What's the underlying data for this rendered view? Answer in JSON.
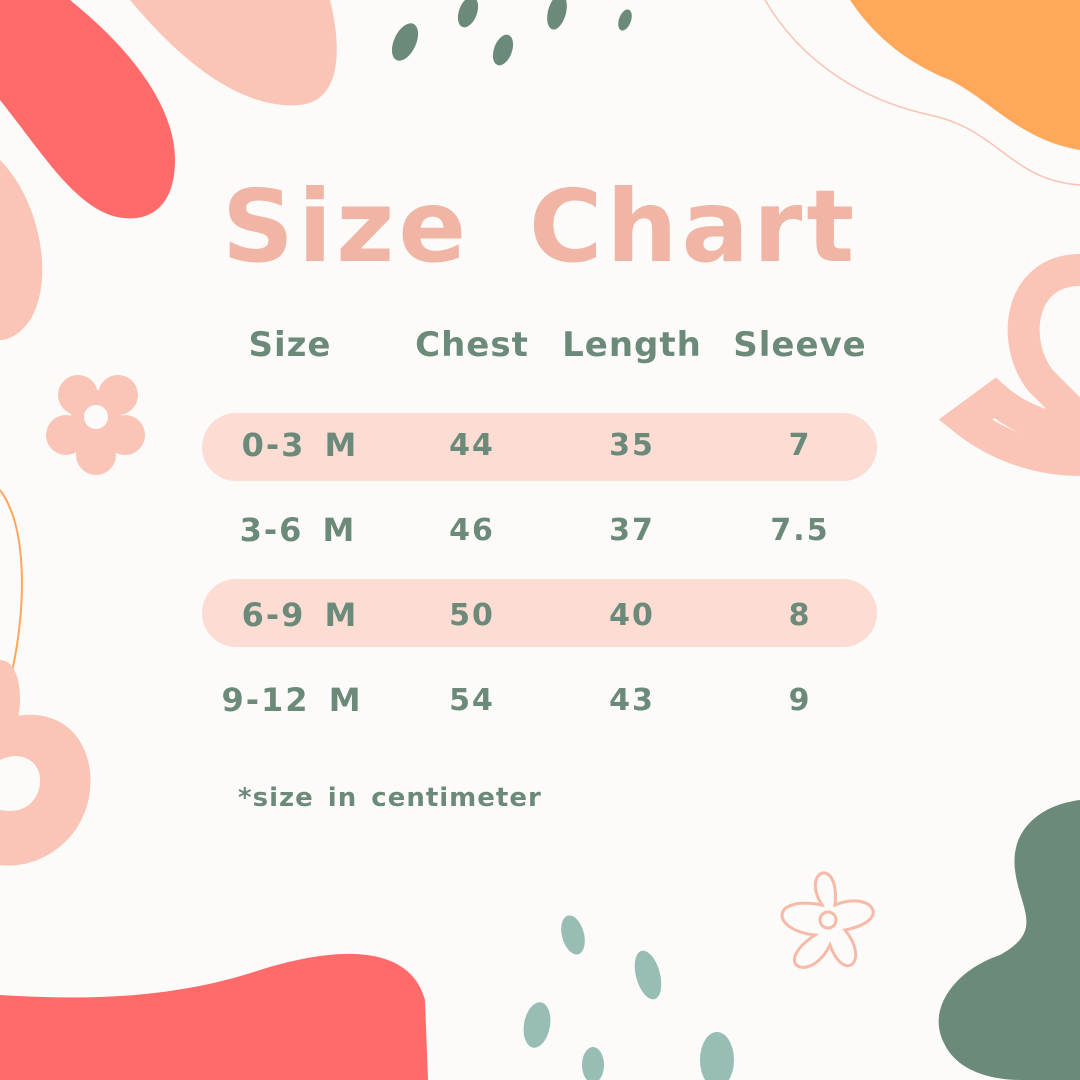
{
  "title": "Size Chart",
  "headers": [
    "Size",
    "Chest",
    "Length",
    "Sleeve"
  ],
  "rows": [
    {
      "size": "0-3 M",
      "chest": "44",
      "length": "35",
      "sleeve": "7",
      "highlight": true
    },
    {
      "size": "3-6 M",
      "chest": "46",
      "length": "37",
      "sleeve": "7.5",
      "highlight": false
    },
    {
      "size": "6-9 M",
      "chest": "50",
      "length": "40",
      "sleeve": "8",
      "highlight": true
    },
    {
      "size": "9-12 M",
      "chest": "54",
      "length": "43",
      "sleeve": "9",
      "highlight": false
    }
  ],
  "note": "*size in centimeter",
  "colors": {
    "background": "#fdfbf9",
    "title": "#f0b5a5",
    "text": "#6b8a7a",
    "band": "#fddcd4",
    "coral": "#ff6b6b",
    "peach": "#fac5b6",
    "orange": "#ffa75a",
    "green": "#6b8a7a",
    "sage": "#98bdb5"
  }
}
